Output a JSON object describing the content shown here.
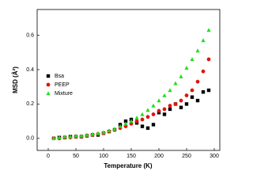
{
  "chart_data": {
    "type": "scatter",
    "x_label": "Temperature (K)",
    "y_label": "MSD (Å²)",
    "x": [
      10,
      20,
      30,
      40,
      50,
      60,
      70,
      80,
      90,
      100,
      110,
      120,
      130,
      140,
      150,
      160,
      170,
      180,
      190,
      200,
      210,
      220,
      230,
      240,
      250,
      260,
      270,
      280,
      290
    ],
    "series": [
      {
        "name": "Bsa",
        "color": "#000000",
        "marker": "square",
        "values": [
          0.0,
          0.005,
          0.005,
          0.01,
          0.01,
          0.01,
          0.015,
          0.02,
          0.02,
          0.03,
          0.04,
          0.05,
          0.08,
          0.1,
          0.11,
          0.09,
          0.07,
          0.06,
          0.08,
          0.15,
          0.14,
          0.17,
          0.2,
          0.18,
          0.2,
          0.24,
          0.22,
          0.27,
          0.28
        ]
      },
      {
        "name": "PEEP",
        "color": "#e0140f",
        "marker": "circle",
        "values": [
          0.0,
          0.0,
          0.005,
          0.005,
          0.01,
          0.01,
          0.015,
          0.02,
          0.025,
          0.03,
          0.04,
          0.05,
          0.06,
          0.07,
          0.085,
          0.1,
          0.11,
          0.125,
          0.14,
          0.16,
          0.17,
          0.19,
          0.2,
          0.22,
          0.25,
          0.28,
          0.33,
          0.39,
          0.46
        ]
      },
      {
        "name": "Mixture",
        "color": "#22dd1e",
        "marker": "triangle",
        "values": [
          0.0,
          0.005,
          0.01,
          0.01,
          0.015,
          0.015,
          0.02,
          0.025,
          0.03,
          0.035,
          0.045,
          0.055,
          0.07,
          0.085,
          0.1,
          0.12,
          0.14,
          0.165,
          0.19,
          0.22,
          0.25,
          0.28,
          0.32,
          0.36,
          0.41,
          0.46,
          0.51,
          0.57,
          0.63
        ]
      }
    ],
    "xlim": [
      -20,
      310
    ],
    "ylim": [
      -0.07,
      0.75
    ],
    "xticks": [
      0,
      50,
      100,
      150,
      200,
      250,
      300
    ],
    "yticks": [
      {
        "value": 0,
        "label": "0.0"
      },
      0.2,
      0.4,
      0.6
    ],
    "legend": "upper left"
  }
}
